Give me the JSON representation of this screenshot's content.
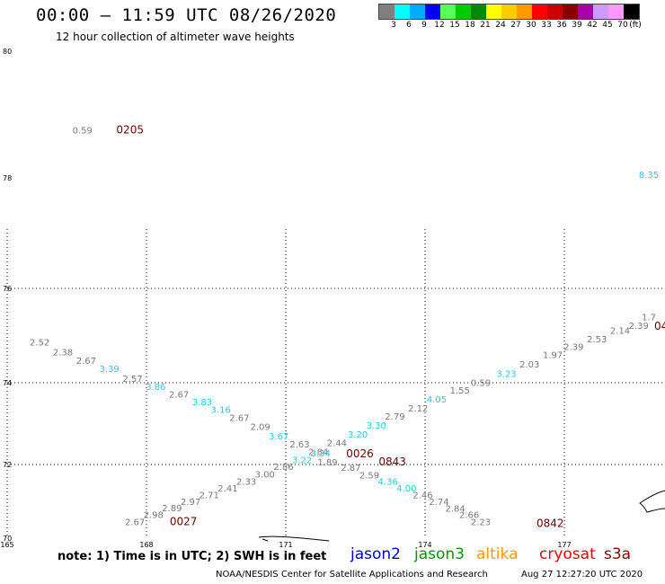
{
  "title": "00:00 — 11:59 UTC 08/26/2020",
  "subtitle": "12 hour collection of altimeter wave heights",
  "legend": {
    "colors": [
      "#808080",
      "#00ffff",
      "#00aaff",
      "#0000ff",
      "#55ff55",
      "#00cc00",
      "#008800",
      "#ffff00",
      "#ffcc00",
      "#ff9900",
      "#ff0000",
      "#cc0000",
      "#880000",
      "#aa00aa",
      "#cc99ff",
      "#ff99ff",
      "#000000"
    ],
    "labels": [
      "3",
      "6",
      "9",
      "12",
      "15",
      "18",
      "21",
      "24",
      "27",
      "30",
      "33",
      "36",
      "39",
      "42",
      "45",
      "70",
      "(ft)"
    ]
  },
  "map": {
    "lat_labels": [
      "80",
      "78",
      "76",
      "74",
      "72",
      "70"
    ],
    "lon_labels": [
      "165",
      "168",
      "171",
      "174",
      "177"
    ],
    "colors": {
      "gray": "#777777",
      "cyan": "#22ccdd",
      "time": "#660000"
    },
    "swh": [
      {
        "v": "0.59",
        "lon": 166.62,
        "lat": 78.7,
        "c": "gray"
      },
      {
        "v": "8.35",
        "lon": 180.8,
        "lat": 78.0,
        "c": "cyan"
      },
      {
        "v": "2.52",
        "lon": 165.7,
        "lat": 74.79,
        "c": "gray"
      },
      {
        "v": "2.38",
        "lon": 166.2,
        "lat": 74.58,
        "c": "gray"
      },
      {
        "v": "2.67",
        "lon": 166.7,
        "lat": 74.4,
        "c": "gray"
      },
      {
        "v": "3.39",
        "lon": 167.2,
        "lat": 74.23,
        "c": "cyan"
      },
      {
        "v": "2.57",
        "lon": 167.7,
        "lat": 74.02,
        "c": "gray"
      },
      {
        "v": "3.86",
        "lon": 168.2,
        "lat": 73.82,
        "c": "cyan"
      },
      {
        "v": "2.67",
        "lon": 168.7,
        "lat": 73.64,
        "c": "gray"
      },
      {
        "v": "3.83",
        "lon": 169.2,
        "lat": 73.45,
        "c": "cyan"
      },
      {
        "v": "3.16",
        "lon": 169.6,
        "lat": 73.26,
        "c": "cyan"
      },
      {
        "v": "2.67",
        "lon": 170.0,
        "lat": 73.07,
        "c": "gray"
      },
      {
        "v": "2.09",
        "lon": 170.45,
        "lat": 72.85,
        "c": "gray"
      },
      {
        "v": "3.67",
        "lon": 170.85,
        "lat": 72.62,
        "c": "cyan"
      },
      {
        "v": "2.63",
        "lon": 171.3,
        "lat": 72.42,
        "c": "gray"
      },
      {
        "v": "2.84",
        "lon": 171.7,
        "lat": 72.23,
        "c": "gray"
      },
      {
        "v": "3.22",
        "lon": 171.35,
        "lat": 72.03,
        "c": "cyan"
      },
      {
        "v": "3.34",
        "lon": 171.75,
        "lat": 72.2,
        "c": "cyan"
      },
      {
        "v": "2.44",
        "lon": 172.1,
        "lat": 72.45,
        "c": "gray"
      },
      {
        "v": "3.20",
        "lon": 172.55,
        "lat": 72.66,
        "c": "cyan"
      },
      {
        "v": "3.30",
        "lon": 172.95,
        "lat": 72.88,
        "c": "cyan"
      },
      {
        "v": "2.79",
        "lon": 173.35,
        "lat": 73.1,
        "c": "gray"
      },
      {
        "v": "2.12",
        "lon": 173.85,
        "lat": 73.3,
        "c": "gray"
      },
      {
        "v": "4.05",
        "lon": 174.25,
        "lat": 73.52,
        "c": "cyan"
      },
      {
        "v": "1.55",
        "lon": 174.75,
        "lat": 73.74,
        "c": "gray"
      },
      {
        "v": "0.59",
        "lon": 175.2,
        "lat": 73.92,
        "c": "gray"
      },
      {
        "v": "3.23",
        "lon": 175.75,
        "lat": 74.12,
        "c": "cyan"
      },
      {
        "v": "2.03",
        "lon": 176.25,
        "lat": 74.32,
        "c": "gray"
      },
      {
        "v": "1.97",
        "lon": 176.75,
        "lat": 74.52,
        "c": "gray"
      },
      {
        "v": "2.39",
        "lon": 177.2,
        "lat": 74.7,
        "c": "gray"
      },
      {
        "v": "2.53",
        "lon": 177.7,
        "lat": 74.86,
        "c": "gray"
      },
      {
        "v": "2.14",
        "lon": 178.2,
        "lat": 75.04,
        "c": "gray"
      },
      {
        "v": "2.39",
        "lon": 178.6,
        "lat": 75.14,
        "c": "gray"
      },
      {
        "v": "1.7",
        "lon": 179.4,
        "lat": 75.32,
        "c": "gray"
      },
      {
        "v": "1.89",
        "lon": 171.9,
        "lat": 71.98,
        "c": "gray"
      },
      {
        "v": "2.87",
        "lon": 172.4,
        "lat": 71.83,
        "c": "gray"
      },
      {
        "v": "2.59",
        "lon": 172.8,
        "lat": 71.62,
        "c": "gray"
      },
      {
        "v": "4.36",
        "lon": 173.2,
        "lat": 71.45,
        "c": "cyan"
      },
      {
        "v": "4.00",
        "lon": 173.6,
        "lat": 71.27,
        "c": "cyan"
      },
      {
        "v": "2.46",
        "lon": 173.95,
        "lat": 71.08,
        "c": "gray"
      },
      {
        "v": "2.74",
        "lon": 174.3,
        "lat": 70.9,
        "c": "gray"
      },
      {
        "v": "2.84",
        "lon": 174.65,
        "lat": 70.72,
        "c": "gray"
      },
      {
        "v": "2.66",
        "lon": 174.95,
        "lat": 70.55,
        "c": "gray"
      },
      {
        "v": "2.23",
        "lon": 175.2,
        "lat": 70.35,
        "c": "gray"
      },
      {
        "v": "2.86",
        "lon": 170.95,
        "lat": 71.85,
        "c": "gray"
      },
      {
        "v": "3.00",
        "lon": 170.55,
        "lat": 71.65,
        "c": "gray"
      },
      {
        "v": "2.33",
        "lon": 170.15,
        "lat": 71.45,
        "c": "gray"
      },
      {
        "v": "2.41",
        "lon": 169.75,
        "lat": 71.27,
        "c": "gray"
      },
      {
        "v": "2.71",
        "lon": 169.35,
        "lat": 71.08,
        "c": "gray"
      },
      {
        "v": "2.97",
        "lon": 168.95,
        "lat": 70.9,
        "c": "gray"
      },
      {
        "v": "2.89",
        "lon": 168.55,
        "lat": 70.73,
        "c": "gray"
      },
      {
        "v": "2.98",
        "lon": 168.15,
        "lat": 70.55,
        "c": "gray"
      },
      {
        "v": "2.67",
        "lon": 167.75,
        "lat": 70.35,
        "c": "gray"
      }
    ],
    "times": [
      {
        "v": "0205",
        "lon": 167.35,
        "lat": 78.7
      },
      {
        "v": "0026",
        "lon": 172.3,
        "lat": 72.18
      },
      {
        "v": "0843",
        "lon": 173.0,
        "lat": 71.98
      },
      {
        "v": "0027",
        "lon": 168.5,
        "lat": 70.35
      },
      {
        "v": "0842",
        "lon": 176.4,
        "lat": 70.3
      },
      {
        "v": "04",
        "lon": 180.0,
        "lat": 75.12
      }
    ]
  },
  "note": "note:  1) Time is in UTC; 2) SWH is in feet",
  "satellites": [
    {
      "name": "jason2",
      "color": "#0000cc"
    },
    {
      "name": "jason3",
      "color": "#009900"
    },
    {
      "name": "altika",
      "color": "#ff9900"
    },
    {
      "name": "cryosat",
      "color": "#ee0000"
    },
    {
      "name": "s3a",
      "color": "#880000"
    }
  ],
  "footer": {
    "center": "NOAA/NESDIS Center for Satellite Applications and Research",
    "datetime": "Aug 27 12:27:20 UTC 2020"
  }
}
